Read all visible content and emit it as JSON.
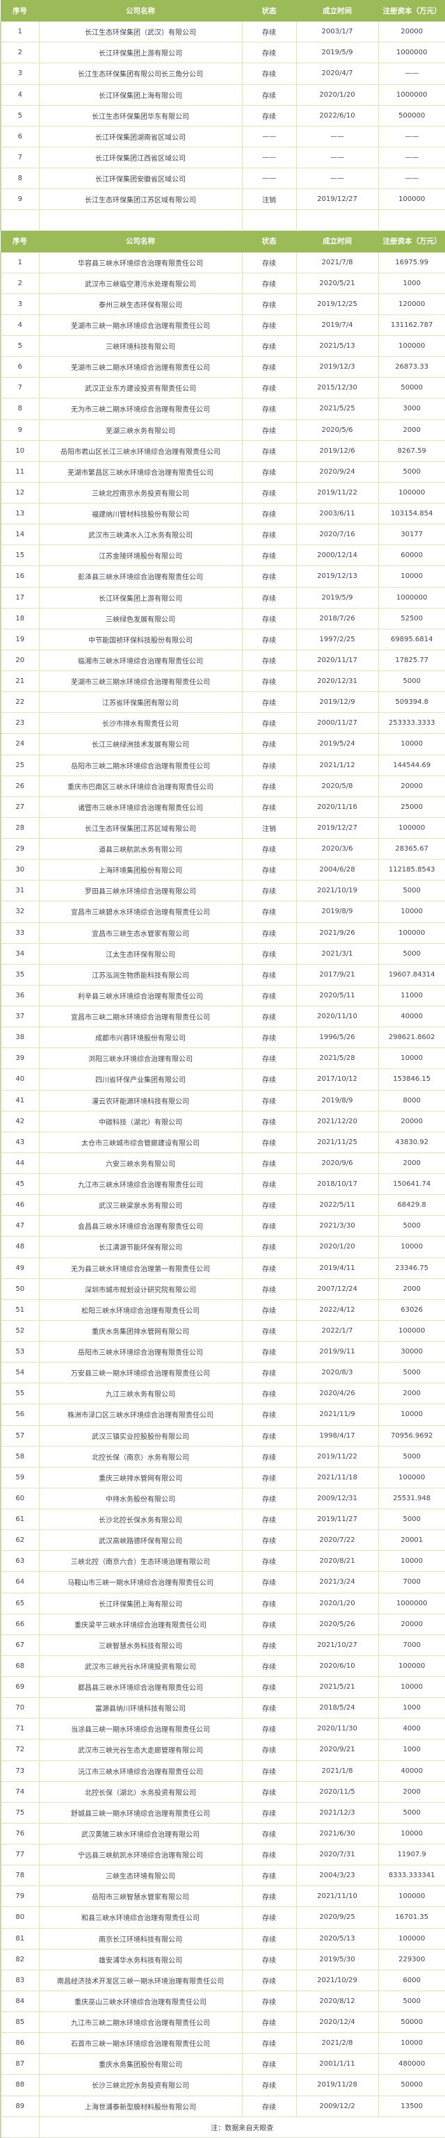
{
  "header": [
    "序号",
    "公司名称",
    "状态",
    "成立时间",
    "注册资本（万元）"
  ],
  "table1": [
    [
      "1",
      "长江生态环保集团（武汉）有限公司",
      "存续",
      "2003/1/7",
      "20000"
    ],
    [
      "2",
      "长江环保集团上游有限公司",
      "存续",
      "2019/5/9",
      "1000000"
    ],
    [
      "3",
      "长江生态环保集团有限公司长三角分公司",
      "存续",
      "2020/4/7",
      "——"
    ],
    [
      "4",
      "长江环保集团上海有限公司",
      "存续",
      "2020/1/20",
      "1000000"
    ],
    [
      "5",
      "长江生态环保集团华东有限公司",
      "存续",
      "2022/6/10",
      "500000"
    ],
    [
      "6",
      "长江环保集团湖南省区域公司",
      "——",
      "——",
      "——"
    ],
    [
      "7",
      "长江环保集团江西省区域公司",
      "——",
      "——",
      "——"
    ],
    [
      "8",
      "长江环保集团安徽省区域公司",
      "——",
      "——",
      "——"
    ],
    [
      "9",
      "长江生态环保集团江苏区域有限公司",
      "注销",
      "2019/12/27",
      "100000"
    ]
  ],
  "table2": [
    [
      "1",
      "华容县三峡水环境综合治理有限责任公司",
      "存续",
      "2021/7/8",
      "16975.99"
    ],
    [
      "2",
      "武汉市三峡临空港污水处理有限公司",
      "存续",
      "2020/5/21",
      "1000"
    ],
    [
      "3",
      "泰州三峡生态环保有限公司",
      "存续",
      "2019/12/25",
      "120000"
    ],
    [
      "4",
      "芜湖市三峡一期水环境综合治理有限责任公司",
      "存续",
      "2019/7/4",
      "131162.787"
    ],
    [
      "5",
      "三峡环境科技有限公司",
      "存续",
      "2021/5/13",
      "100000"
    ],
    [
      "6",
      "芜湖市三峡二期水环境综合治理有限责任公司",
      "存续",
      "2019/12/3",
      "26873.33"
    ],
    [
      "7",
      "武汉正业东方建设投资有限责任公司",
      "存续",
      "2015/12/30",
      "50000"
    ],
    [
      "8",
      "无为市三峡二期水环境综合治理有限责任公司",
      "存续",
      "2021/5/25",
      "3000"
    ],
    [
      "9",
      "芜湖三峡水务有限公司",
      "存续",
      "2020/5/6",
      "2000"
    ],
    [
      "10",
      "岳阳市君山区长江三峡水环境综合治理有限责任公司",
      "存续",
      "2019/12/6",
      "8267.59"
    ],
    [
      "11",
      "芜湖市繁昌区三峡水环境综合治理有限责任公司",
      "存续",
      "2020/9/24",
      "5000"
    ],
    [
      "12",
      "三峡北控南京水务投资有限公司",
      "存续",
      "2019/11/22",
      "100000"
    ],
    [
      "13",
      "福建纳川管材科技股份有限公司",
      "存续",
      "2003/6/11",
      "103154.854"
    ],
    [
      "14",
      "武汉市三峡清水入江水务有限公司",
      "存续",
      "2020/7/16",
      "30177"
    ],
    [
      "15",
      "江苏金陵环境股份有限公司",
      "存续",
      "2000/12/14",
      "60000"
    ],
    [
      "16",
      "彭泽县三峡水环境综合治理有限责任公司",
      "存续",
      "2019/12/13",
      "10000"
    ],
    [
      "17",
      "长江环保集团上游有限公司",
      "存续",
      "2019/5/9",
      "1000000"
    ],
    [
      "18",
      "三峡绿色发展有限公司",
      "存续",
      "2018/7/26",
      "52500"
    ],
    [
      "19",
      "中节能国祯环保科技股份有限公司",
      "存续",
      "1997/2/25",
      "69895.6814"
    ],
    [
      "20",
      "临湘市三峡水环境综合治理有限责任公司",
      "存续",
      "2020/11/17",
      "17825.77"
    ],
    [
      "21",
      "芜湖市三峡三期水环境综合治理有限责任公司",
      "存续",
      "2020/12/31",
      "5000"
    ],
    [
      "22",
      "江苏省环保集团有限公司",
      "存续",
      "2019/12/9",
      "509394.8"
    ],
    [
      "23",
      "长沙市排水有限责任公司",
      "存续",
      "2000/11/27",
      "253333.3333"
    ],
    [
      "24",
      "长江三峡绿洲技术发展有限公司",
      "存续",
      "2019/5/24",
      "10000"
    ],
    [
      "25",
      "岳阳市三峡二期水环境综合治理有限责任公司",
      "存续",
      "2021/1/12",
      "144544.69"
    ],
    [
      "26",
      "重庆市巴南区三峡水环境综合治理有限责任公司",
      "存续",
      "2020/5/8",
      "20000"
    ],
    [
      "27",
      "诸暨市三峡水环境综合治理有限责任公司",
      "存续",
      "2020/11/16",
      "25000"
    ],
    [
      "28",
      "长江生态环保集团江苏区域有限公司",
      "注销",
      "2019/12/27",
      "100000"
    ],
    [
      "29",
      "道县三峡航凯水务有限公司",
      "存续",
      "2020/3/6",
      "28365.67"
    ],
    [
      "30",
      "上海环境集团股份有限公司",
      "存续",
      "2004/6/28",
      "112185.8543"
    ],
    [
      "31",
      "罗田县三峡水环境综合治理有限公司",
      "存续",
      "2021/10/19",
      "5000"
    ],
    [
      "32",
      "宜昌市三峡碧水水环境综合治理有限责任公司",
      "存续",
      "2019/8/9",
      "10000"
    ],
    [
      "33",
      "宜昌市三峡生态水管家有限公司",
      "存续",
      "2021/9/26",
      "100000"
    ],
    [
      "34",
      "江太生态环保有限公司",
      "存续",
      "2021/3/1",
      "5000"
    ],
    [
      "35",
      "江苏泓润生物质能科技有限公司",
      "存续",
      "2017/9/21",
      "19607.84314"
    ],
    [
      "36",
      "利辛县三峡水环境综合治理有限责任公司",
      "存续",
      "2020/5/11",
      "11000"
    ],
    [
      "37",
      "宜昌市三峡二期水环境综合治理有限责任公司",
      "存续",
      "2020/11/10",
      "40000"
    ],
    [
      "38",
      "成都市兴蓉环境股份有限公司",
      "存续",
      "1996/5/26",
      "298621.8602"
    ],
    [
      "39",
      "浏阳三峡水环境综合治理有限公司",
      "存续",
      "2021/5/28",
      "10000"
    ],
    [
      "40",
      "四川省环保产业集团有限公司",
      "存续",
      "2017/10/12",
      "153846.15"
    ],
    [
      "41",
      "灌云农环能源环境科技有限公司",
      "存续",
      "2019/8/9",
      "8000"
    ],
    [
      "42",
      "中碳科技（湖北）有限公司",
      "存续",
      "2021/12/20",
      "20000"
    ],
    [
      "43",
      "太仓市三峡城市综合管廊建设有限公司",
      "存续",
      "2021/11/25",
      "43830.92"
    ],
    [
      "44",
      "六安三峡水务有限公司",
      "存续",
      "2020/9/6",
      "2000"
    ],
    [
      "45",
      "九江市三峡水环境综合治理有限责任公司",
      "存续",
      "2018/10/17",
      "150641.74"
    ],
    [
      "46",
      "武汉三峡梁泉水务有限公司",
      "存续",
      "2022/5/11",
      "68429.8"
    ],
    [
      "47",
      "会昌县三峡水环境综合治理有限责任公司",
      "存续",
      "2021/3/30",
      "5000"
    ],
    [
      "48",
      "长江清源节能环保有限公司",
      "存续",
      "2020/1/20",
      "10000"
    ],
    [
      "49",
      "无为县三峡水环境综合治理第一有限责任公司",
      "存续",
      "2019/4/11",
      "23346.75"
    ],
    [
      "50",
      "深圳市城市规划设计研究院有限公司",
      "存续",
      "2007/12/24",
      "2000"
    ],
    [
      "51",
      "松阳三峡水环境综合治理有限责任公司",
      "存续",
      "2022/4/12",
      "63026"
    ],
    [
      "52",
      "重庆水务集团排水管网有限公司",
      "存续",
      "2022/1/7",
      "100000"
    ],
    [
      "53",
      "岳阳市三峡水环境综合治理有限责任公司",
      "存续",
      "2019/9/11",
      "30000"
    ],
    [
      "54",
      "万安县三峡一期水环境综合治理有限责任公司",
      "存续",
      "2020/8/3",
      "5000"
    ],
    [
      "55",
      "九江三峡水务有限公司",
      "存续",
      "2020/4/26",
      "2000"
    ],
    [
      "56",
      "株洲市渌口区三峡水环境综合治理有限责任公司",
      "存续",
      "2021/11/9",
      "10000"
    ],
    [
      "57",
      "武汉三镇实业控股股份有限公司",
      "存续",
      "1998/4/17",
      "70956.9692"
    ],
    [
      "58",
      "北控长保（南京）水务有限公司",
      "存续",
      "2019/11/22",
      "5000"
    ],
    [
      "59",
      "重庆三峡排水管网有限公司",
      "存续",
      "2021/11/18",
      "100000"
    ],
    [
      "60",
      "中持水务股份有限公司",
      "存续",
      "2009/12/31",
      "25531.948"
    ],
    [
      "61",
      "长沙北控长保水务有限公司",
      "存续",
      "2019/11/27",
      "5000"
    ],
    [
      "62",
      "武汉高峡路德环保有限公司",
      "存续",
      "2020/7/22",
      "20001"
    ],
    [
      "63",
      "三峡北控（南京六合）生态环境治理有限公司",
      "存续",
      "2020/8/21",
      "10000"
    ],
    [
      "64",
      "马鞍山市三峡一期水环境综合治理有限责任公司",
      "存续",
      "2021/3/24",
      "7000"
    ],
    [
      "65",
      "长江环保集团上海有限公司",
      "存续",
      "2020/1/20",
      "1000000"
    ],
    [
      "66",
      "重庆梁平三峡水环境综合治理有限责任公司",
      "存续",
      "2020/5/26",
      "20000"
    ],
    [
      "67",
      "三峡智慧水务科技有限公司",
      "存续",
      "2021/10/27",
      "7000"
    ],
    [
      "68",
      "武汉市三峡光谷水环境投资有限公司",
      "存续",
      "2020/6/10",
      "100000"
    ],
    [
      "69",
      "都昌县三峡水环境综合治理有限责任公司",
      "存续",
      "2021/5/21",
      "10000"
    ],
    [
      "70",
      "富源县纳川环境科技有限公司",
      "存续",
      "2018/5/24",
      "1000"
    ],
    [
      "71",
      "当涂县三峡一期水环境综合治理有限责任公司",
      "存续",
      "2020/11/30",
      "4000"
    ],
    [
      "72",
      "武汉市三峡光谷生态大走廊管理有限公司",
      "存续",
      "2020/9/21",
      "1000"
    ],
    [
      "73",
      "沅江市三峡水环境综合治理有限责任公司",
      "存续",
      "2021/1/8",
      "40000"
    ],
    [
      "74",
      "北控长保（湖北）水务投资有限公司",
      "存续",
      "2020/11/5",
      "2000"
    ],
    [
      "75",
      "舒城县三峡一期水环境综合治理有限责任公司",
      "存续",
      "2021/12/3",
      "5000"
    ],
    [
      "76",
      "武汉黄陂三峡水环境综合治理有限公司",
      "存续",
      "2021/6/30",
      "10000"
    ],
    [
      "77",
      "宁远县三峡航凯水环境综合治理有限公司",
      "存续",
      "2020/7/31",
      "11907.9"
    ],
    [
      "78",
      "三峡生态环境有限公司",
      "存续",
      "2004/3/23",
      "8333.333341"
    ],
    [
      "79",
      "岳阳市三峡智慧水管家有限公司",
      "存续",
      "2021/11/10",
      "100000"
    ],
    [
      "80",
      "和县三峡水环境综合治理有限责任公司",
      "存续",
      "2020/9/25",
      "16701.35"
    ],
    [
      "81",
      "南京长江环境科技有限公司",
      "存续",
      "2020/5/13",
      "100000"
    ],
    [
      "82",
      "雄安浦华水务科技有限公司",
      "存续",
      "2019/5/30",
      "229300"
    ],
    [
      "83",
      "南昌经济技术开发区三峡一期水环境治理有限责任公司",
      "存续",
      "2021/10/29",
      "6000"
    ],
    [
      "84",
      "重庆巫山三峡水环境综合治理有限责任公司",
      "存续",
      "2020/8/12",
      "5000"
    ],
    [
      "85",
      "九江市三峡二期水环境综合治理有限责任公司",
      "存续",
      "2020/12/4",
      "50000"
    ],
    [
      "86",
      "石首市三峡一期水环境综合治理有限责任公司",
      "存续",
      "2021/2/8",
      "10000"
    ],
    [
      "87",
      "重庆水务集团股份有限公司",
      "存续",
      "2001/1/11",
      "480000"
    ],
    [
      "88",
      "长沙三峡北控水务投资有限公司",
      "存续",
      "2019/11/28",
      "50000"
    ],
    [
      "89",
      "上海世浦泰新型膜材料股份有限公司",
      "存续",
      "2009/12/2",
      "13500"
    ]
  ],
  "footnote": "注：数据来自天眼查",
  "colors": {
    "header_bg": "#9bbb59",
    "border": "#dbe5c6"
  }
}
